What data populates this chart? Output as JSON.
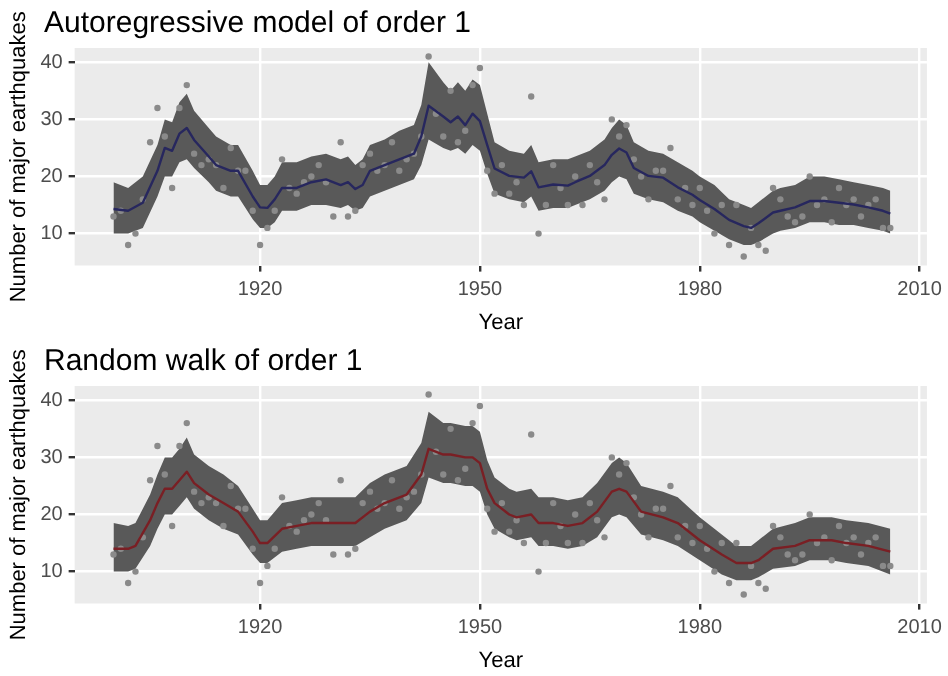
{
  "chart_data": [
    {
      "type": "scatter",
      "title": "Autoregressive model of order 1",
      "xlabel": "Year",
      "ylabel": "Number of major earthquakes",
      "xlim": [
        1894.7,
        2011
      ],
      "xticks": [
        1920,
        1950,
        1980,
        2010
      ],
      "ylim": [
        4.4,
        42.5
      ],
      "yticks": [
        10,
        20,
        30,
        40
      ],
      "grid": true,
      "legend": false,
      "series": [
        {
          "color": "#8a8a8a",
          "marker": "circle",
          "x": [
            1900,
            1901,
            1902,
            1903,
            1904,
            1905,
            1906,
            1907,
            1908,
            1909,
            1910,
            1911,
            1912,
            1913,
            1914,
            1915,
            1916,
            1917,
            1918,
            1919,
            1920,
            1921,
            1922,
            1923,
            1924,
            1925,
            1926,
            1927,
            1928,
            1929,
            1930,
            1931,
            1932,
            1933,
            1934,
            1935,
            1936,
            1937,
            1938,
            1939,
            1940,
            1941,
            1942,
            1943,
            1944,
            1945,
            1946,
            1947,
            1948,
            1949,
            1950,
            1951,
            1952,
            1953,
            1954,
            1955,
            1956,
            1957,
            1958,
            1959,
            1960,
            1961,
            1962,
            1963,
            1964,
            1965,
            1966,
            1967,
            1968,
            1969,
            1970,
            1971,
            1972,
            1973,
            1974,
            1975,
            1976,
            1977,
            1978,
            1979,
            1980,
            1981,
            1982,
            1983,
            1984,
            1985,
            1986,
            1987,
            1988,
            1989,
            1990,
            1991,
            1992,
            1993,
            1994,
            1995,
            1996,
            1997,
            1998,
            1999,
            2000,
            2001,
            2002,
            2003,
            2004,
            2005,
            2006
          ],
          "values": [
            13,
            14,
            8,
            10,
            16,
            26,
            32,
            27,
            18,
            32,
            36,
            24,
            22,
            23,
            22,
            18,
            25,
            21,
            21,
            14,
            8,
            11,
            14,
            23,
            18,
            17,
            19,
            20,
            22,
            19,
            13,
            26,
            13,
            14,
            22,
            24,
            21,
            22,
            26,
            21,
            23,
            24,
            27,
            41,
            31,
            27,
            35,
            26,
            28,
            36,
            39,
            21,
            17,
            22,
            17,
            19,
            15,
            34,
            10,
            15,
            22,
            18,
            15,
            20,
            15,
            22,
            19,
            16,
            30,
            27,
            29,
            23,
            20,
            16,
            21,
            21,
            25,
            16,
            18,
            15,
            18,
            14,
            10,
            15,
            8,
            15,
            6,
            11,
            8,
            7,
            18,
            16,
            13,
            12,
            13,
            20,
            15,
            16,
            12,
            18,
            15,
            16,
            13,
            15,
            16,
            11,
            11
          ]
        },
        {
          "type": "line",
          "color": "#27275e",
          "marker": "none",
          "x": [
            1900,
            1902,
            1904,
            1906,
            1907,
            1908,
            1909,
            1910,
            1911,
            1913,
            1914,
            1916,
            1917,
            1919,
            1920,
            1921,
            1922,
            1923,
            1925,
            1927,
            1929,
            1931,
            1932,
            1933,
            1934,
            1935,
            1937,
            1939,
            1941,
            1942,
            1943,
            1945,
            1946,
            1947,
            1948,
            1949,
            1950,
            1951,
            1952,
            1954,
            1956,
            1957,
            1958,
            1960,
            1962,
            1963,
            1965,
            1967,
            1968,
            1969,
            1970,
            1971,
            1973,
            1975,
            1977,
            1979,
            1980,
            1982,
            1984,
            1986,
            1987,
            1988,
            1990,
            1991,
            1993,
            1995,
            1997,
            1999,
            2001,
            2003,
            2005,
            2006
          ],
          "values": [
            14.3,
            14,
            15.4,
            21,
            25,
            24.5,
            27.5,
            28.5,
            26.4,
            23.5,
            22,
            21,
            21,
            16.5,
            14.6,
            14.5,
            16,
            18,
            18,
            19,
            19.5,
            18.5,
            19,
            17.8,
            18.5,
            21,
            22,
            23,
            24,
            27,
            32.4,
            30.5,
            29.5,
            30.5,
            29,
            31,
            29.7,
            25.5,
            21.4,
            20.1,
            19.8,
            20.9,
            18.1,
            18.6,
            18.4,
            19,
            20.1,
            22,
            23.8,
            24.9,
            24.2,
            21.5,
            20.1,
            19.8,
            18.1,
            16.8,
            15.9,
            14.3,
            12.4,
            11.3,
            11,
            11.8,
            13.7,
            14,
            14.6,
            15.7,
            15.7,
            15.4,
            15.1,
            14.6,
            14,
            13.5
          ],
          "lower": [
            10,
            10,
            11,
            16.5,
            20,
            20,
            22.5,
            23,
            21.5,
            19,
            17.5,
            16.5,
            16.5,
            12.5,
            11,
            11,
            12,
            14,
            14,
            15,
            15,
            14.5,
            15,
            14,
            14.5,
            16.5,
            17.5,
            18.5,
            19.5,
            22,
            26.5,
            25,
            24.5,
            25,
            24,
            25.5,
            24.5,
            20.5,
            17,
            16,
            15.5,
            16.5,
            14,
            14.5,
            14.5,
            15,
            16,
            17.5,
            19,
            20,
            19.5,
            17,
            16,
            15.5,
            14,
            13,
            12,
            10.5,
            9,
            8,
            8,
            8.5,
            10,
            10.5,
            11,
            12,
            12,
            11.5,
            11.5,
            11,
            10.5,
            10
          ],
          "upper": [
            19,
            18,
            20,
            25.5,
            30,
            29.5,
            33,
            34.5,
            31.5,
            28.5,
            27,
            25.5,
            25.5,
            21,
            18.5,
            18.5,
            20,
            22.5,
            22.5,
            23.5,
            24,
            23,
            23.5,
            22,
            23,
            25.5,
            26.5,
            28,
            29,
            32.5,
            40,
            36.5,
            35,
            36.5,
            35,
            37,
            36,
            31,
            26,
            24.5,
            24,
            25.5,
            22.5,
            23,
            23,
            23.5,
            24.5,
            26.5,
            28.5,
            30,
            29,
            26,
            24.5,
            24,
            22.5,
            21,
            20,
            18.5,
            16,
            15,
            14.5,
            15.5,
            17.5,
            18,
            18.5,
            20,
            20,
            19.5,
            19,
            18.5,
            18,
            17.5
          ]
        }
      ]
    },
    {
      "type": "scatter",
      "title": "Random walk of order 1",
      "xlabel": "Year",
      "ylabel": "Number of major earthquakes",
      "xlim": [
        1894.7,
        2011
      ],
      "xticks": [
        1920,
        1950,
        1980,
        2010
      ],
      "ylim": [
        4.4,
        42.5
      ],
      "yticks": [
        10,
        20,
        30,
        40
      ],
      "grid": true,
      "legend": false,
      "series": [
        {
          "color": "#8a8a8a",
          "marker": "circle",
          "x": [
            1900,
            1901,
            1902,
            1903,
            1904,
            1905,
            1906,
            1907,
            1908,
            1909,
            1910,
            1911,
            1912,
            1913,
            1914,
            1915,
            1916,
            1917,
            1918,
            1919,
            1920,
            1921,
            1922,
            1923,
            1924,
            1925,
            1926,
            1927,
            1928,
            1929,
            1930,
            1931,
            1932,
            1933,
            1934,
            1935,
            1936,
            1937,
            1938,
            1939,
            1940,
            1941,
            1942,
            1943,
            1944,
            1945,
            1946,
            1947,
            1948,
            1949,
            1950,
            1951,
            1952,
            1953,
            1954,
            1955,
            1956,
            1957,
            1958,
            1959,
            1960,
            1961,
            1962,
            1963,
            1964,
            1965,
            1966,
            1967,
            1968,
            1969,
            1970,
            1971,
            1972,
            1973,
            1974,
            1975,
            1976,
            1977,
            1978,
            1979,
            1980,
            1981,
            1982,
            1983,
            1984,
            1985,
            1986,
            1987,
            1988,
            1989,
            1990,
            1991,
            1992,
            1993,
            1994,
            1995,
            1996,
            1997,
            1998,
            1999,
            2000,
            2001,
            2002,
            2003,
            2004,
            2005,
            2006
          ],
          "values": [
            13,
            14,
            8,
            10,
            16,
            26,
            32,
            27,
            18,
            32,
            36,
            24,
            22,
            23,
            22,
            18,
            25,
            21,
            21,
            14,
            8,
            11,
            14,
            23,
            18,
            17,
            19,
            20,
            22,
            19,
            13,
            26,
            13,
            14,
            22,
            24,
            21,
            22,
            26,
            21,
            23,
            24,
            27,
            41,
            31,
            27,
            35,
            26,
            28,
            36,
            39,
            21,
            17,
            22,
            17,
            19,
            15,
            34,
            10,
            15,
            22,
            18,
            15,
            20,
            15,
            22,
            19,
            16,
            30,
            27,
            29,
            23,
            20,
            16,
            21,
            21,
            25,
            16,
            18,
            15,
            18,
            14,
            10,
            15,
            8,
            15,
            6,
            11,
            8,
            7,
            18,
            16,
            13,
            12,
            13,
            20,
            15,
            16,
            12,
            18,
            15,
            16,
            13,
            15,
            16,
            11,
            11
          ]
        },
        {
          "type": "line",
          "color": "#7a1f24",
          "marker": "none",
          "x": [
            1900,
            1902,
            1903,
            1905,
            1906,
            1907,
            1908,
            1909,
            1910,
            1911,
            1913,
            1915,
            1917,
            1919,
            1920,
            1921,
            1923,
            1925,
            1927,
            1930,
            1932,
            1933,
            1935,
            1937,
            1940,
            1942,
            1943,
            1945,
            1946,
            1948,
            1949,
            1950,
            1951,
            1952,
            1954,
            1955,
            1957,
            1958,
            1960,
            1962,
            1964,
            1966,
            1968,
            1969,
            1970,
            1972,
            1975,
            1977,
            1980,
            1983,
            1985,
            1987,
            1988,
            1990,
            1993,
            1995,
            1998,
            2000,
            2003,
            2006
          ],
          "values": [
            14,
            14,
            14.5,
            19,
            22,
            24.5,
            24.5,
            26,
            27.5,
            25.5,
            23.5,
            22,
            20.5,
            17,
            15,
            15,
            17.5,
            18,
            18.5,
            18.5,
            18.5,
            18.5,
            20.5,
            22,
            23.5,
            27,
            31.5,
            30.5,
            30.5,
            30,
            30,
            29,
            24.5,
            22,
            20,
            19.5,
            20,
            18.5,
            18.5,
            18,
            18.5,
            20.5,
            24,
            24.5,
            24,
            20.5,
            19.5,
            18.5,
            15.5,
            13,
            11.5,
            11.5,
            12,
            14,
            14.5,
            15.5,
            15.5,
            15,
            14.5,
            13.5
          ],
          "lower": [
            10,
            10,
            10.5,
            14.5,
            17.5,
            20,
            20,
            21.5,
            23,
            21,
            19,
            17.5,
            16.5,
            13,
            11.5,
            11.5,
            13.5,
            14,
            14.5,
            14.5,
            14.5,
            14.5,
            16,
            17.5,
            19,
            22,
            26.5,
            25.5,
            25.5,
            25,
            25,
            24,
            20,
            17.5,
            16,
            15.5,
            16,
            14.5,
            14.5,
            14,
            14.5,
            16,
            19.5,
            20,
            19.5,
            16.5,
            15.5,
            14.5,
            12,
            9.5,
            8.5,
            8.5,
            9,
            10.5,
            11,
            12,
            12,
            11.5,
            11,
            9.5
          ],
          "upper": [
            18.5,
            18,
            18.5,
            23.5,
            27,
            30,
            30,
            31.5,
            33.5,
            30.5,
            28.5,
            27,
            25,
            21,
            19,
            19,
            22,
            22.5,
            23,
            23,
            23,
            23,
            25.5,
            27,
            28.5,
            32.5,
            38,
            36,
            36,
            35.5,
            35.5,
            34.5,
            29.5,
            26.5,
            24.5,
            24,
            24.5,
            23,
            23,
            22.5,
            23,
            25.5,
            29,
            30,
            29,
            25,
            24,
            23,
            19.5,
            16.5,
            14.5,
            14.5,
            15.5,
            17.5,
            18.5,
            19.5,
            19.5,
            19,
            18.5,
            17.5
          ]
        }
      ]
    }
  ]
}
